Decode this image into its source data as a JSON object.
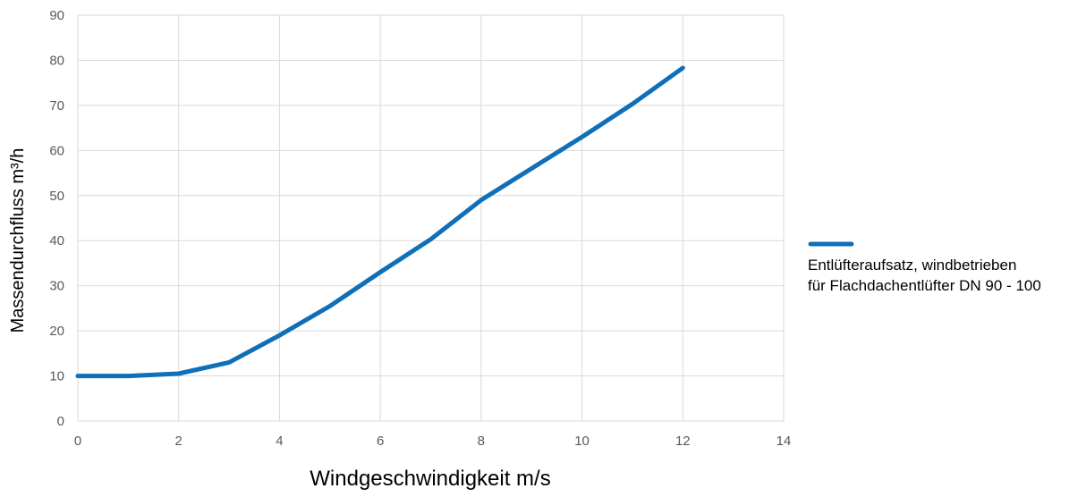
{
  "chart_data": {
    "type": "line",
    "title": "",
    "xlabel": "Windgeschwindigkeit m/s",
    "ylabel": "Massendurchfluss m³/h",
    "xlim": [
      0,
      14
    ],
    "ylim": [
      0,
      90
    ],
    "xticks": [
      0,
      2,
      4,
      6,
      8,
      10,
      12,
      14
    ],
    "yticks": [
      0,
      10,
      20,
      30,
      40,
      50,
      60,
      70,
      80,
      90
    ],
    "grid": true,
    "legend_position": "right",
    "series": [
      {
        "name_line1": "Entlüfteraufsatz, windbetrieben",
        "name_line2": "für Flachdachentlüfter DN 90 - 100",
        "color": "#0f6fb8",
        "x": [
          0,
          1,
          2,
          3,
          4,
          5,
          6,
          7,
          8,
          9,
          10,
          11,
          12
        ],
        "y": [
          10,
          10,
          10.5,
          13,
          19,
          25.5,
          33,
          40.3,
          49,
          56,
          63,
          70.3,
          78.3
        ]
      }
    ]
  }
}
